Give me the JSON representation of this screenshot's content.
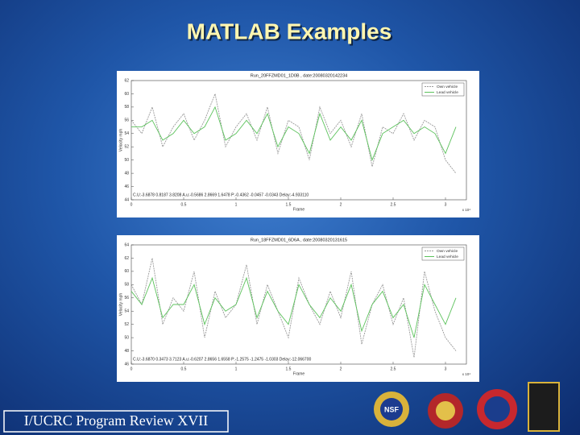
{
  "slide": {
    "title": "MATLAB Examples",
    "footer": "I/UCRC Program Review XVII",
    "logo_text": "NSF"
  },
  "chart_data": [
    {
      "type": "line",
      "title": "Run_20FFZMD01_1D0B , date:20080320142234",
      "xlabel": "Frame",
      "ylabel": "Velocity mph",
      "x_multiplier": "x 10⁴",
      "annotation": "C.U:-3.6878 0.8187 3.8208 A.u:-0.5686 2.8669 1.6478 P:-0.4362 -0.0457 -0.0343 Delay:-4.933110",
      "x": [
        0,
        0.1,
        0.2,
        0.3,
        0.4,
        0.5,
        0.6,
        0.7,
        0.8,
        0.9,
        1,
        1.1,
        1.2,
        1.3,
        1.4,
        1.5,
        1.6,
        1.7,
        1.8,
        1.9,
        2,
        2.1,
        2.2,
        2.3,
        2.4,
        2.5,
        2.6,
        2.7,
        2.8,
        2.9,
        3,
        3.1
      ],
      "series": [
        {
          "name": "Own vehicle",
          "color": "#9a9a9a",
          "values": [
            56,
            54,
            58,
            52,
            55,
            57,
            53,
            56,
            60,
            52,
            55,
            57,
            53,
            58,
            51,
            56,
            55,
            50,
            58,
            54,
            56,
            52,
            57,
            49,
            55,
            54,
            57,
            53,
            56,
            55,
            50,
            48
          ]
        },
        {
          "name": "Lead vehicle",
          "color": "#5cc25c",
          "values": [
            55,
            55,
            56,
            53,
            54,
            56,
            54,
            55,
            58,
            53,
            54,
            56,
            54,
            57,
            52,
            55,
            54,
            51,
            57,
            53,
            55,
            53,
            56,
            50,
            54,
            55,
            56,
            54,
            55,
            54,
            51,
            55
          ]
        }
      ],
      "xlim": [
        0,
        3.2
      ],
      "ylim": [
        44,
        62
      ],
      "xticks": [
        0,
        0.5,
        1,
        1.5,
        2,
        2.5,
        3
      ],
      "yticks": [
        44,
        46,
        48,
        50,
        52,
        54,
        56,
        58,
        60,
        62
      ],
      "legend": "upper right"
    },
    {
      "type": "line",
      "title": "Run_18FFZMD01_6D6A , date:20080320131615",
      "xlabel": "Frame",
      "ylabel": "Velocity mph",
      "x_multiplier": "x 10⁴",
      "annotation": "C.U:-3.6870 0.3473 3.7123 A.u:-0.6207 2.8656 1.6558 P:-1.2575 -1.2475 -1.0303 Delay:-12.066700",
      "x": [
        0,
        0.1,
        0.2,
        0.3,
        0.4,
        0.5,
        0.6,
        0.7,
        0.8,
        0.9,
        1,
        1.1,
        1.2,
        1.3,
        1.4,
        1.5,
        1.6,
        1.7,
        1.8,
        1.9,
        2,
        2.1,
        2.2,
        2.3,
        2.4,
        2.5,
        2.6,
        2.7,
        2.8,
        2.9,
        3,
        3.1
      ],
      "series": [
        {
          "name": "Own vehicle",
          "color": "#9a9a9a",
          "values": [
            58,
            55,
            62,
            52,
            56,
            54,
            60,
            50,
            57,
            53,
            55,
            61,
            52,
            58,
            54,
            50,
            59,
            55,
            52,
            57,
            53,
            60,
            49,
            55,
            58,
            52,
            56,
            47,
            60,
            54,
            50,
            48
          ]
        },
        {
          "name": "Lead vehicle",
          "color": "#5cc25c",
          "values": [
            57,
            55,
            59,
            53,
            55,
            55,
            58,
            52,
            56,
            54,
            55,
            59,
            53,
            57,
            54,
            52,
            58,
            55,
            53,
            56,
            54,
            58,
            51,
            55,
            57,
            53,
            55,
            50,
            58,
            55,
            52,
            56
          ]
        }
      ],
      "xlim": [
        0,
        3.2
      ],
      "ylim": [
        46,
        64
      ],
      "xticks": [
        0,
        0.5,
        1,
        1.5,
        2,
        2.5,
        3
      ],
      "yticks": [
        46,
        48,
        50,
        52,
        54,
        56,
        58,
        60,
        62,
        64
      ],
      "legend": "upper right"
    }
  ]
}
